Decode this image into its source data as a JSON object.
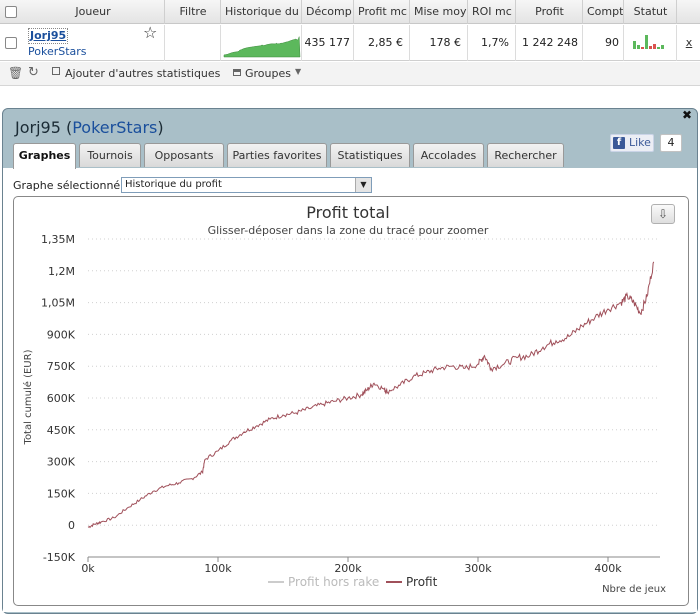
{
  "table": {
    "columns": [
      "Joueur",
      "Filtre",
      "Historique du",
      "Décomp",
      "Profit mc",
      "Mise moy",
      "ROI mc",
      "Profit",
      "Compt",
      "Statut"
    ],
    "row": {
      "player": "Jorj95",
      "site": "PokerStars",
      "filter": "",
      "decompte": "435 177",
      "profit_mc": "2,85 €",
      "mise_moy": "178 €",
      "roi_mc": "1,7%",
      "profit": "1 242 248",
      "compt": "90",
      "remove": "x"
    }
  },
  "toolbar": {
    "add_stats": "Ajouter d'autres statistiques",
    "groups": "Groupes"
  },
  "panel": {
    "player": "Jorj95",
    "site": "PokerStars",
    "fb_like": "Like",
    "fb_count": "4",
    "tabs": [
      "Graphes",
      "Tournois",
      "Opposants",
      "Parties favorites",
      "Statistiques",
      "Accolades",
      "Rechercher"
    ],
    "active_tab": "Graphes",
    "selector_label": "Graphe sélectionné :",
    "selector_value": "Historique du profit"
  },
  "chart_data": {
    "type": "line",
    "title": "Profit total",
    "subtitle": "Glisser-déposer dans la zone du tracé pour zoomer",
    "xlabel": "Nbre de jeux",
    "ylabel": "Total cumulé (EUR)",
    "xlim": [
      0,
      440000
    ],
    "ylim": [
      -150000,
      1350000
    ],
    "x_ticks": [
      "0k",
      "100k",
      "200k",
      "300k",
      "400k"
    ],
    "y_ticks": [
      "-150K",
      "0",
      "150K",
      "300K",
      "450K",
      "600K",
      "750K",
      "900K",
      "1,05M",
      "1,2M",
      "1,35M"
    ],
    "series": [
      {
        "name": "Profit",
        "color": "#a0505a",
        "x": [
          0,
          5000,
          10000,
          20000,
          30000,
          40000,
          50000,
          60000,
          70000,
          80000,
          88000,
          90000,
          100000,
          110000,
          120000,
          130000,
          140000,
          150000,
          160000,
          170000,
          180000,
          190000,
          200000,
          210000,
          215000,
          220000,
          228000,
          230000,
          240000,
          250000,
          260000,
          270000,
          280000,
          290000,
          300000,
          305000,
          310000,
          320000,
          330000,
          340000,
          350000,
          360000,
          370000,
          380000,
          390000,
          400000,
          410000,
          415000,
          420000,
          425000,
          430000,
          435177
        ],
        "values": [
          -10000,
          5000,
          15000,
          35000,
          80000,
          120000,
          160000,
          185000,
          200000,
          220000,
          250000,
          310000,
          350000,
          400000,
          440000,
          470000,
          500000,
          520000,
          530000,
          550000,
          570000,
          585000,
          600000,
          615000,
          640000,
          670000,
          640000,
          630000,
          660000,
          700000,
          720000,
          740000,
          750000,
          740000,
          760000,
          800000,
          740000,
          760000,
          790000,
          800000,
          840000,
          870000,
          890000,
          940000,
          980000,
          1020000,
          1050000,
          1080000,
          1050000,
          1000000,
          1080000,
          1242248
        ]
      },
      {
        "name": "Profit hors rake",
        "color": "#cccccc",
        "x": [],
        "values": []
      }
    ],
    "grid": true,
    "legend": "bottom-center"
  }
}
